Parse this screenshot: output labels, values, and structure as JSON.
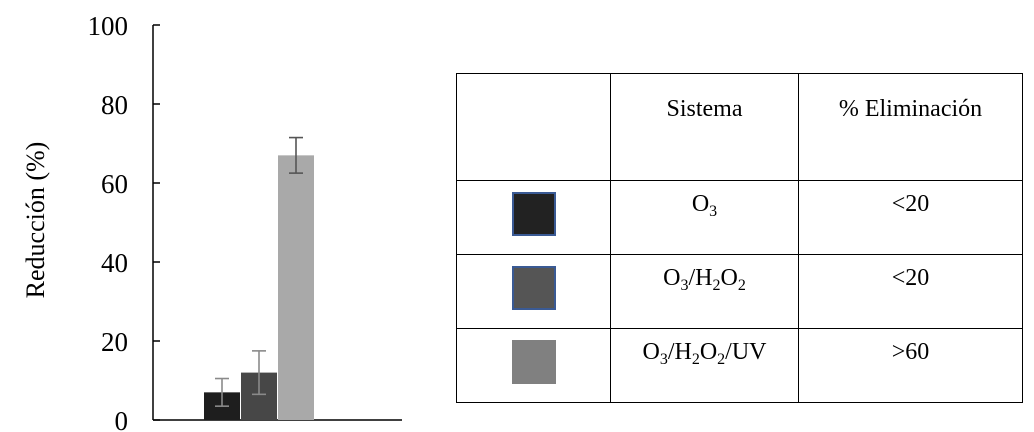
{
  "chart_data": {
    "type": "bar",
    "ylabel": "Reducción (%)",
    "ylim": [
      0,
      100
    ],
    "yticks": [
      0,
      20,
      40,
      60,
      80,
      100
    ],
    "categories": [
      "O3",
      "O3/H2O2",
      "O3/H2O2/UV"
    ],
    "values": [
      7,
      12,
      67
    ],
    "errors": [
      3.5,
      5.5,
      4.5
    ],
    "colors": [
      "#1e1e1e",
      "#474747",
      "#a9a9a9"
    ],
    "grid": false
  },
  "table": {
    "headers": [
      "",
      "Sistema",
      "% Eliminación"
    ],
    "rows": [
      {
        "swatch_color": "#222222",
        "swatch_border": "#3a5a94",
        "system_parts": [
          [
            "O",
            "3"
          ]
        ],
        "removal": "<20"
      },
      {
        "swatch_color": "#555555",
        "swatch_border": "#3a5a94",
        "system_parts": [
          [
            "O",
            "3"
          ],
          [
            "/H",
            "2"
          ],
          [
            "O",
            "2"
          ]
        ],
        "removal": "<20"
      },
      {
        "swatch_color": "#808080",
        "swatch_border": "#808080",
        "system_parts": [
          [
            "O",
            "3"
          ],
          [
            "/H",
            "2"
          ],
          [
            "O",
            "2"
          ],
          [
            "/UV",
            ""
          ]
        ],
        "removal": ">60"
      }
    ]
  }
}
